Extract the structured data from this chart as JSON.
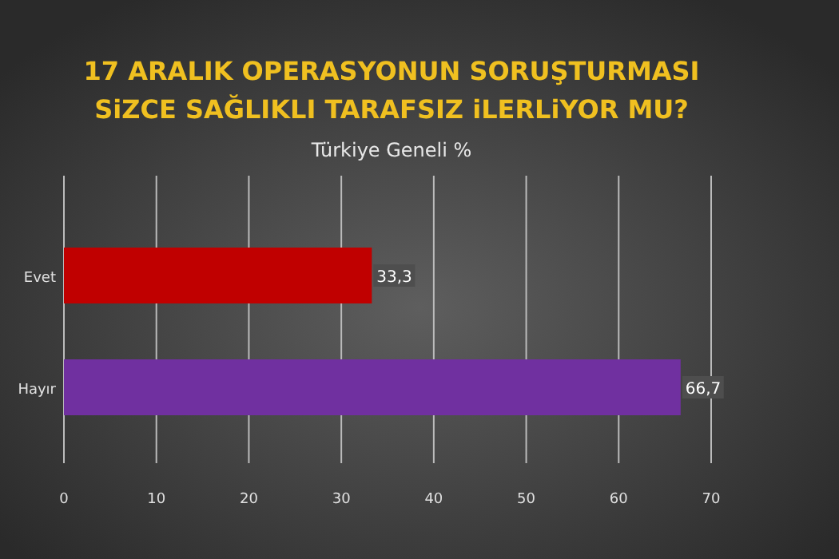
{
  "chart_data": {
    "type": "bar",
    "orientation": "horizontal",
    "title": "17 ARALIK OPERASYONUN SORUŞTURMASI\nSiZCE SAĞLIKLI TARAFSIZ iLERLiYOR MU?",
    "subtitle": "Türkiye Geneli  %",
    "categories": [
      "Evet",
      "Hayır"
    ],
    "values": [
      33.3,
      66.7
    ],
    "colors": [
      "#c00000",
      "#7030a0"
    ],
    "value_labels": [
      "33,3",
      "66,7"
    ],
    "xlim": [
      0,
      70
    ],
    "xticks": [
      0,
      10,
      20,
      30,
      40,
      50,
      60,
      70
    ],
    "grid": "x"
  }
}
